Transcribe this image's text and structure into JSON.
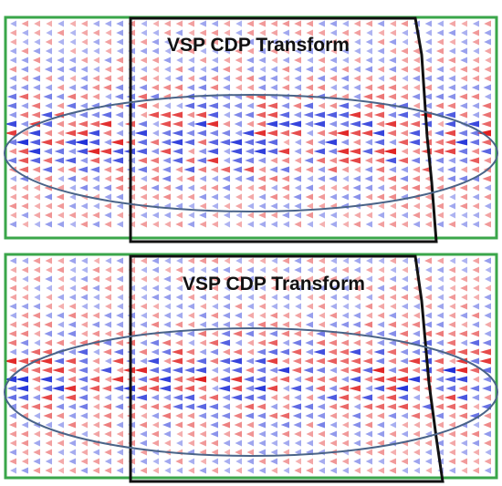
{
  "panels": [
    {
      "title": "VSP CDP Transform"
    },
    {
      "title": "VSP CDP Transform"
    }
  ]
}
